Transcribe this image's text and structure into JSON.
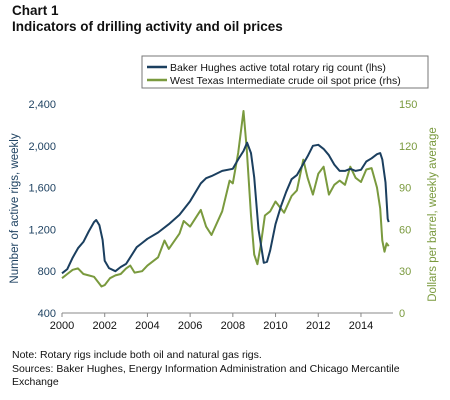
{
  "header": {
    "chart_number": "Chart 1",
    "title": "Indicators of drilling activity and oil prices"
  },
  "notes": {
    "note": "Note:  Rotary rigs include both oil and natural gas rigs.",
    "sources": "Sources: Baker Hughes, Energy Information Administration and Chicago Mercantile Exchange"
  },
  "chart_data": {
    "type": "line",
    "title": "Indicators of drilling activity and oil prices",
    "xlabel": "",
    "ylabel_left": "Number of active rigs, weekly",
    "ylabel_right": "Dollars per barrel, weekly average",
    "xlim": [
      2000,
      2015.5
    ],
    "ylim_left": [
      400,
      2400
    ],
    "ylim_right": [
      0,
      150
    ],
    "x_ticks": [
      "2000",
      "2002",
      "2004",
      "2006",
      "2008",
      "2010",
      "2012",
      "2014"
    ],
    "y_left_ticks": [
      "400",
      "800",
      "1,200",
      "1,600",
      "2,000",
      "2,400"
    ],
    "y_right_ticks": [
      "0",
      "30",
      "60",
      "90",
      "120",
      "150"
    ],
    "grid": false,
    "legend_position": "top-right",
    "colors": {
      "rig": "#1b3f5f",
      "oil": "#7a9a3e"
    },
    "series": [
      {
        "name": "Baker Hughes active total rotary rig count (lhs)",
        "axis": "left",
        "color": "#1b3f5f",
        "points": [
          [
            2000.0,
            780
          ],
          [
            2000.25,
            820
          ],
          [
            2000.5,
            930
          ],
          [
            2000.75,
            1020
          ],
          [
            2001.0,
            1080
          ],
          [
            2001.25,
            1180
          ],
          [
            2001.5,
            1270
          ],
          [
            2001.6,
            1290
          ],
          [
            2001.75,
            1240
          ],
          [
            2001.9,
            1100
          ],
          [
            2002.0,
            900
          ],
          [
            2002.2,
            830
          ],
          [
            2002.5,
            800
          ],
          [
            2002.75,
            840
          ],
          [
            2003.0,
            870
          ],
          [
            2003.5,
            1030
          ],
          [
            2003.75,
            1070
          ],
          [
            2004.0,
            1110
          ],
          [
            2004.5,
            1170
          ],
          [
            2005.0,
            1250
          ],
          [
            2005.5,
            1340
          ],
          [
            2006.0,
            1470
          ],
          [
            2006.5,
            1640
          ],
          [
            2006.75,
            1690
          ],
          [
            2007.0,
            1710
          ],
          [
            2007.5,
            1760
          ],
          [
            2008.0,
            1780
          ],
          [
            2008.25,
            1870
          ],
          [
            2008.5,
            1950
          ],
          [
            2008.67,
            2030
          ],
          [
            2008.85,
            1930
          ],
          [
            2009.0,
            1700
          ],
          [
            2009.2,
            1200
          ],
          [
            2009.45,
            880
          ],
          [
            2009.6,
            890
          ],
          [
            2009.75,
            1000
          ],
          [
            2010.0,
            1250
          ],
          [
            2010.25,
            1420
          ],
          [
            2010.5,
            1560
          ],
          [
            2010.75,
            1680
          ],
          [
            2011.0,
            1720
          ],
          [
            2011.25,
            1810
          ],
          [
            2011.5,
            1900
          ],
          [
            2011.75,
            2000
          ],
          [
            2012.0,
            2010
          ],
          [
            2012.25,
            1970
          ],
          [
            2012.5,
            1910
          ],
          [
            2012.75,
            1820
          ],
          [
            2013.0,
            1760
          ],
          [
            2013.25,
            1760
          ],
          [
            2013.5,
            1780
          ],
          [
            2013.75,
            1760
          ],
          [
            2014.0,
            1770
          ],
          [
            2014.25,
            1850
          ],
          [
            2014.5,
            1880
          ],
          [
            2014.75,
            1920
          ],
          [
            2014.9,
            1930
          ],
          [
            2015.0,
            1870
          ],
          [
            2015.15,
            1650
          ],
          [
            2015.25,
            1300
          ],
          [
            2015.3,
            1270
          ]
        ]
      },
      {
        "name": "West Texas Intermediate crude oil spot price (rhs)",
        "axis": "right",
        "color": "#7a9a3e",
        "points": [
          [
            2000.0,
            25
          ],
          [
            2000.25,
            28
          ],
          [
            2000.5,
            31
          ],
          [
            2000.75,
            32
          ],
          [
            2001.0,
            28
          ],
          [
            2001.25,
            27
          ],
          [
            2001.5,
            26
          ],
          [
            2001.75,
            21
          ],
          [
            2001.85,
            19
          ],
          [
            2002.0,
            20
          ],
          [
            2002.25,
            25
          ],
          [
            2002.5,
            27
          ],
          [
            2002.75,
            28
          ],
          [
            2003.0,
            32
          ],
          [
            2003.2,
            34
          ],
          [
            2003.4,
            29
          ],
          [
            2003.75,
            30
          ],
          [
            2004.0,
            34
          ],
          [
            2004.5,
            40
          ],
          [
            2004.8,
            52
          ],
          [
            2005.0,
            46
          ],
          [
            2005.5,
            57
          ],
          [
            2005.7,
            66
          ],
          [
            2006.0,
            62
          ],
          [
            2006.5,
            74
          ],
          [
            2006.75,
            62
          ],
          [
            2007.0,
            56
          ],
          [
            2007.5,
            73
          ],
          [
            2007.85,
            95
          ],
          [
            2008.0,
            93
          ],
          [
            2008.25,
            115
          ],
          [
            2008.5,
            145
          ],
          [
            2008.65,
            118
          ],
          [
            2008.85,
            70
          ],
          [
            2009.0,
            42
          ],
          [
            2009.15,
            35
          ],
          [
            2009.3,
            48
          ],
          [
            2009.5,
            70
          ],
          [
            2009.75,
            73
          ],
          [
            2010.0,
            80
          ],
          [
            2010.4,
            72
          ],
          [
            2010.75,
            84
          ],
          [
            2011.0,
            88
          ],
          [
            2011.3,
            110
          ],
          [
            2011.5,
            97
          ],
          [
            2011.75,
            85
          ],
          [
            2012.0,
            100
          ],
          [
            2012.25,
            105
          ],
          [
            2012.5,
            85
          ],
          [
            2012.75,
            92
          ],
          [
            2013.0,
            95
          ],
          [
            2013.25,
            92
          ],
          [
            2013.5,
            105
          ],
          [
            2013.75,
            97
          ],
          [
            2014.0,
            94
          ],
          [
            2014.25,
            103
          ],
          [
            2014.5,
            104
          ],
          [
            2014.75,
            90
          ],
          [
            2014.9,
            75
          ],
          [
            2015.0,
            52
          ],
          [
            2015.1,
            44
          ],
          [
            2015.2,
            50
          ],
          [
            2015.3,
            48
          ]
        ]
      }
    ]
  }
}
